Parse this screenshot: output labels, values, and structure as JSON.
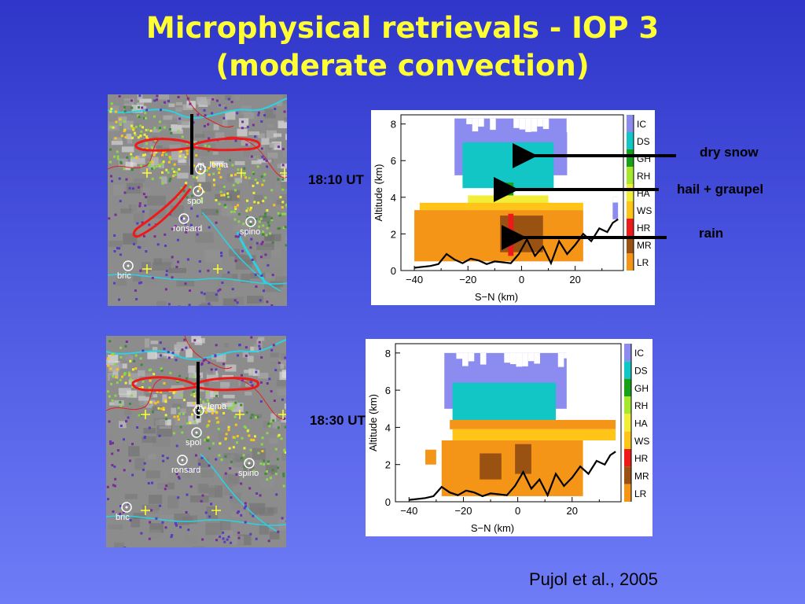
{
  "slide": {
    "title_line1": "Microphysical retrievals -  IOP 3",
    "title_line2": "(moderate convection)",
    "citation": "Pujol et al., 2005"
  },
  "maps": {
    "stations": [
      "m. lema",
      "spol",
      "ronsard",
      "spino",
      "bric"
    ]
  },
  "annotations": {
    "dry_snow": "dry snow",
    "hail_graupel": "hail + graupel",
    "rain": "rain"
  },
  "colors": {
    "IC": "#8b8bf0",
    "DS": "#12c6c6",
    "GH": "#18a018",
    "RH": "#a6e82e",
    "HA": "#f2ee38",
    "WS": "#ffc418",
    "HR": "#ee1a1a",
    "MR": "#9a5212",
    "LR": "#f59518"
  },
  "chart_data": [
    {
      "type": "heatmap",
      "label": "18:10 UT",
      "xlabel": "S−N (km)",
      "ylabel": "Altitude (km)",
      "xlim": [
        -45,
        38
      ],
      "ylim": [
        0,
        8.5
      ],
      "xticks": [
        "−40",
        "−20",
        "0",
        "20"
      ],
      "yticks": [
        "0",
        "2",
        "4",
        "6",
        "8"
      ],
      "legend": [
        "IC",
        "DS",
        "GH",
        "RH",
        "HA",
        "WS",
        "HR",
        "MR",
        "LR"
      ],
      "regions": [
        {
          "cls": "IC",
          "x0": -25,
          "x1": 17,
          "y0": 5.2,
          "y1": 8.3
        },
        {
          "cls": "DS",
          "x0": -22,
          "x1": 12,
          "y0": 4.5,
          "y1": 7.0
        },
        {
          "cls": "GH",
          "x0": -7,
          "x1": -3,
          "y0": 3.8,
          "y1": 4.8
        },
        {
          "cls": "HA",
          "x0": -20,
          "x1": 10,
          "y0": 3.6,
          "y1": 4.1
        },
        {
          "cls": "WS",
          "x0": -38,
          "x1": 23,
          "y0": 3.3,
          "y1": 3.7
        },
        {
          "cls": "LR",
          "x0": -40,
          "x1": 23,
          "y0": 0.5,
          "y1": 3.3
        },
        {
          "cls": "MR",
          "x0": -8,
          "x1": 8,
          "y0": 1.0,
          "y1": 3.0
        },
        {
          "cls": "HR",
          "x0": -5,
          "x1": -3,
          "y0": 0.8,
          "y1": 3.1
        },
        {
          "cls": "IC",
          "x0": 34,
          "x1": 36,
          "y0": 2.8,
          "y1": 4.0
        }
      ],
      "terrain": {
        "x": [
          -40,
          -37,
          -34,
          -31,
          -28,
          -25,
          -22,
          -19,
          -16,
          -13,
          -10,
          -7,
          -4,
          -1,
          2,
          5,
          8,
          11,
          14,
          17,
          20,
          23,
          26,
          29,
          32,
          34,
          36
        ],
        "y": [
          0.15,
          0.2,
          0.25,
          0.35,
          0.9,
          0.6,
          0.4,
          0.65,
          0.55,
          0.35,
          0.5,
          0.45,
          0.4,
          0.9,
          1.7,
          0.8,
          1.3,
          0.4,
          1.6,
          0.9,
          1.4,
          2.0,
          1.6,
          2.3,
          2.1,
          2.6,
          2.8
        ]
      }
    },
    {
      "type": "heatmap",
      "label": "18:30 UT",
      "xlabel": "S−N (km)",
      "ylabel": "Altitude (km)",
      "xlim": [
        -45,
        38
      ],
      "ylim": [
        0,
        8.5
      ],
      "xticks": [
        "−40",
        "−20",
        "0",
        "20"
      ],
      "yticks": [
        "0",
        "2",
        "4",
        "6",
        "8"
      ],
      "legend": [
        "IC",
        "DS",
        "GH",
        "RH",
        "HA",
        "WS",
        "HR",
        "MR",
        "LR"
      ],
      "regions": [
        {
          "cls": "IC",
          "x0": -27,
          "x1": 18,
          "y0": 5.0,
          "y1": 8.0
        },
        {
          "cls": "DS",
          "x0": -24,
          "x1": 14,
          "y0": 4.3,
          "y1": 6.4
        },
        {
          "cls": "LR",
          "x0": -25,
          "x1": 36,
          "y0": 3.9,
          "y1": 4.4
        },
        {
          "cls": "WS",
          "x0": -24,
          "x1": 36,
          "y0": 3.3,
          "y1": 3.9
        },
        {
          "cls": "LR",
          "x0": -28,
          "x1": 24,
          "y0": 0.3,
          "y1": 3.3
        },
        {
          "cls": "MR",
          "x0": -14,
          "x1": -6,
          "y0": 1.2,
          "y1": 2.6
        },
        {
          "cls": "MR",
          "x0": -1,
          "x1": 5,
          "y0": 1.5,
          "y1": 3.1
        },
        {
          "cls": "LR",
          "x0": -34,
          "x1": -30,
          "y0": 2.0,
          "y1": 2.8
        }
      ],
      "terrain": {
        "x": [
          -40,
          -37,
          -34,
          -31,
          -28,
          -25,
          -22,
          -19,
          -16,
          -13,
          -10,
          -7,
          -4,
          -1,
          2,
          5,
          8,
          11,
          14,
          17,
          20,
          23,
          26,
          29,
          32,
          34,
          36
        ],
        "y": [
          0.1,
          0.15,
          0.2,
          0.3,
          0.8,
          0.5,
          0.35,
          0.6,
          0.5,
          0.3,
          0.45,
          0.4,
          0.35,
          0.85,
          1.6,
          0.7,
          1.2,
          0.35,
          1.5,
          0.85,
          1.3,
          1.9,
          1.5,
          2.2,
          2.0,
          2.5,
          2.7
        ]
      }
    }
  ]
}
